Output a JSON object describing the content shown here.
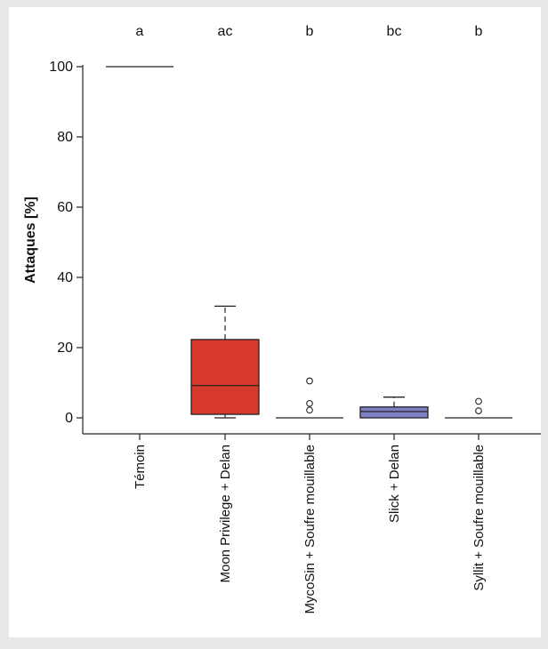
{
  "chart_data": {
    "type": "box",
    "title": "",
    "xlabel": "",
    "ylabel": "Attaques [%]",
    "ylim": [
      -4,
      104
    ],
    "yticks": [
      0,
      20,
      40,
      60,
      80,
      100
    ],
    "grid": false,
    "colors": {
      "background": "#ffffff",
      "frame": "#e6e7e8",
      "moon_box": "#d73a2c",
      "slick_box": "#7f80c6",
      "white_box": "#ffffff"
    },
    "categories": [
      "Témoin",
      "Moon Privilege + Delan",
      "MycoSin + Soufre mouillable",
      "Slick + Delan",
      "Syllit + Soufre mouillable"
    ],
    "group_letters": [
      "a",
      "ac",
      "b",
      "bc",
      "b"
    ],
    "boxes": [
      {
        "q1": 100,
        "median": 100,
        "q3": 100,
        "whisker_low": 100,
        "whisker_high": 100,
        "outliers": [],
        "fill": "#ffffff"
      },
      {
        "q1": 1,
        "median": 9.2,
        "q3": 22.3,
        "whisker_low": 0,
        "whisker_high": 31.8,
        "outliers": [],
        "fill": "#d73a2c"
      },
      {
        "q1": 0,
        "median": 0,
        "q3": 0,
        "whisker_low": 0,
        "whisker_high": 0,
        "outliers": [
          2.2,
          4.1,
          10.5
        ],
        "fill": "#ffffff"
      },
      {
        "q1": 0,
        "median": 1.8,
        "q3": 3.1,
        "whisker_low": 0,
        "whisker_high": 5.9,
        "outliers": [],
        "fill": "#7f80c6"
      },
      {
        "q1": 0,
        "median": 0,
        "q3": 0,
        "whisker_low": 0,
        "whisker_high": 0,
        "outliers": [
          2.0,
          4.7
        ],
        "fill": "#ffffff"
      }
    ]
  }
}
